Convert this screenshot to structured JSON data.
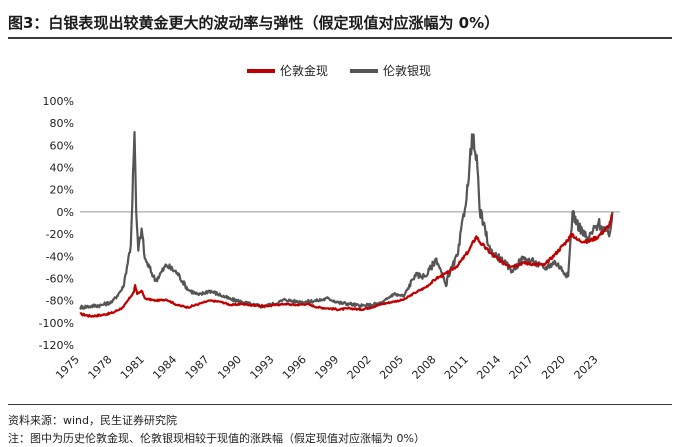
{
  "header": {
    "title": "图3：白银表现出较黄金更大的波动率与弹性（假定现值对应涨幅为 0%）"
  },
  "footer": {
    "source": "资料来源：wind，民生证券研究院",
    "note": "注：图中为历史伦敦金现、伦敦银现相较于现值的涨跌幅（假定现值对应涨幅为 0%）"
  },
  "chart_data": {
    "type": "line",
    "title": "",
    "xlabel": "",
    "ylabel": "",
    "x_ticks": [
      "1975",
      "1978",
      "1981",
      "1984",
      "1987",
      "1990",
      "1993",
      "1996",
      "1999",
      "2002",
      "2005",
      "2008",
      "2011",
      "2014",
      "2017",
      "2020",
      "2023"
    ],
    "y_ticks": [
      "100%",
      "80%",
      "60%",
      "40%",
      "20%",
      "0%",
      "-20%",
      "-40%",
      "-60%",
      "-80%",
      "-100%",
      "-120%"
    ],
    "xlim": [
      1975,
      2025
    ],
    "ylim": [
      -120,
      100
    ],
    "y_unit": "%",
    "grid": false,
    "legend_position": "top-center",
    "series": [
      {
        "name": "伦敦金现",
        "color": "#c00000",
        "points": [
          [
            1975,
            -92
          ],
          [
            1976,
            -94
          ],
          [
            1977,
            -93
          ],
          [
            1978,
            -91
          ],
          [
            1979,
            -86
          ],
          [
            1980.0,
            -72
          ],
          [
            1980.1,
            -66
          ],
          [
            1980.3,
            -74
          ],
          [
            1980.7,
            -71
          ],
          [
            1981,
            -78
          ],
          [
            1982,
            -80
          ],
          [
            1983,
            -79
          ],
          [
            1984,
            -84
          ],
          [
            1985,
            -86
          ],
          [
            1986,
            -83
          ],
          [
            1987,
            -80
          ],
          [
            1988,
            -81
          ],
          [
            1989,
            -84
          ],
          [
            1990,
            -83
          ],
          [
            1991,
            -84
          ],
          [
            1992,
            -85
          ],
          [
            1993,
            -84
          ],
          [
            1994,
            -83
          ],
          [
            1995,
            -84
          ],
          [
            1996,
            -83
          ],
          [
            1997,
            -86
          ],
          [
            1998,
            -87
          ],
          [
            1999,
            -88
          ],
          [
            2000,
            -87
          ],
          [
            2001,
            -88
          ],
          [
            2002,
            -86
          ],
          [
            2003,
            -83
          ],
          [
            2004,
            -81
          ],
          [
            2005,
            -79
          ],
          [
            2006,
            -73
          ],
          [
            2007,
            -68
          ],
          [
            2008,
            -60
          ],
          [
            2009,
            -55
          ],
          [
            2010,
            -48
          ],
          [
            2011,
            -35
          ],
          [
            2011.7,
            -22
          ],
          [
            2012,
            -27
          ],
          [
            2013,
            -37
          ],
          [
            2014,
            -45
          ],
          [
            2015,
            -49
          ],
          [
            2016,
            -46
          ],
          [
            2017,
            -47
          ],
          [
            2018,
            -48
          ],
          [
            2019,
            -38
          ],
          [
            2020,
            -27
          ],
          [
            2020.6,
            -20
          ],
          [
            2021,
            -25
          ],
          [
            2022,
            -27
          ],
          [
            2023,
            -22
          ],
          [
            2024,
            -12
          ],
          [
            2024.3,
            -2
          ]
        ]
      },
      {
        "name": "伦敦银现",
        "color": "#555555",
        "points": [
          [
            1975,
            -86
          ],
          [
            1976,
            -85
          ],
          [
            1977,
            -84
          ],
          [
            1978,
            -81
          ],
          [
            1979,
            -68
          ],
          [
            1979.7,
            -30
          ],
          [
            1980.05,
            72
          ],
          [
            1980.2,
            0
          ],
          [
            1980.4,
            -35
          ],
          [
            1980.7,
            -15
          ],
          [
            1981,
            -42
          ],
          [
            1982,
            -62
          ],
          [
            1983,
            -48
          ],
          [
            1984,
            -55
          ],
          [
            1985,
            -70
          ],
          [
            1986,
            -75
          ],
          [
            1987,
            -71
          ],
          [
            1988,
            -75
          ],
          [
            1989,
            -79
          ],
          [
            1990,
            -81
          ],
          [
            1991,
            -84
          ],
          [
            1992,
            -85
          ],
          [
            1993,
            -83
          ],
          [
            1994,
            -79
          ],
          [
            1995,
            -81
          ],
          [
            1996,
            -81
          ],
          [
            1997,
            -80
          ],
          [
            1998,
            -78
          ],
          [
            1999,
            -82
          ],
          [
            2000,
            -83
          ],
          [
            2001,
            -85
          ],
          [
            2002,
            -84
          ],
          [
            2003,
            -82
          ],
          [
            2004,
            -74
          ],
          [
            2005,
            -76
          ],
          [
            2006,
            -57
          ],
          [
            2007,
            -58
          ],
          [
            2008,
            -42
          ],
          [
            2008.9,
            -67
          ],
          [
            2009,
            -60
          ],
          [
            2010,
            -38
          ],
          [
            2011,
            30
          ],
          [
            2011.3,
            70
          ],
          [
            2011.8,
            40
          ],
          [
            2012,
            2
          ],
          [
            2013,
            -35
          ],
          [
            2014,
            -43
          ],
          [
            2015,
            -53
          ],
          [
            2016,
            -42
          ],
          [
            2017,
            -45
          ],
          [
            2018,
            -51
          ],
          [
            2019,
            -45
          ],
          [
            2020.2,
            -58
          ],
          [
            2020.6,
            0
          ],
          [
            2021,
            -10
          ],
          [
            2022,
            -25
          ],
          [
            2023,
            -10
          ],
          [
            2024,
            -22
          ],
          [
            2024.3,
            0
          ]
        ]
      }
    ]
  }
}
